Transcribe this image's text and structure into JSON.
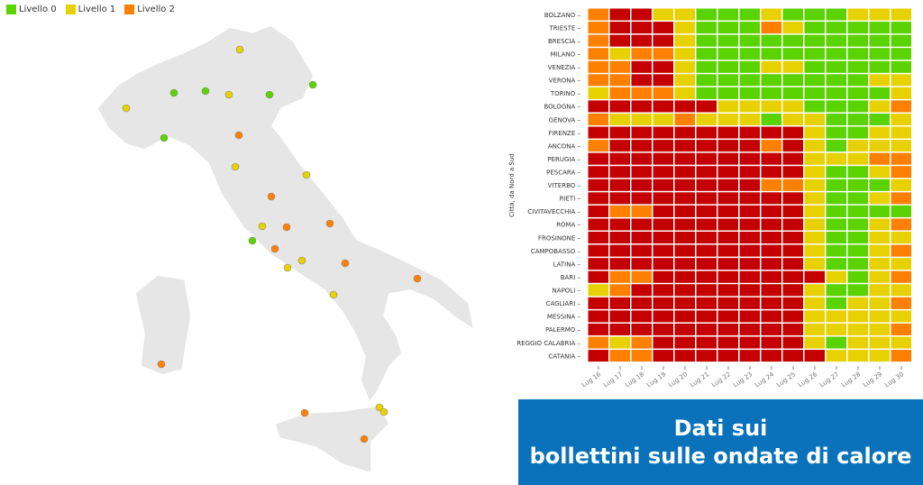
{
  "legend": [
    {
      "label": "Livello 0",
      "color": "#5ad300"
    },
    {
      "label": "Livello 1",
      "color": "#e8d100"
    },
    {
      "label": "Livello 2",
      "color": "#ff8000"
    }
  ],
  "colors": {
    "0": "#5ad300",
    "1": "#e8d100",
    "2": "#ff8000",
    "3": "#c40000"
  },
  "map": {
    "marker_levels": [
      1,
      0,
      0,
      1,
      0,
      0,
      1,
      0,
      2,
      1,
      1,
      2,
      1,
      2,
      2,
      0,
      2,
      1,
      1,
      2,
      2,
      1,
      2,
      2,
      1,
      1,
      2
    ]
  },
  "chart_data": {
    "type": "heatmap",
    "ylabel": "Città, da Nord a Sud",
    "x": [
      "Lug 16",
      "Lug 17",
      "Lug 18",
      "Lug 19",
      "Lug 20",
      "Lug 21",
      "Lug 22",
      "Lug 23",
      "Lug 24",
      "Lug 25",
      "Lug 26",
      "Lug 27",
      "Lug 28",
      "Lug 29",
      "Lug 30"
    ],
    "y": [
      "BOLZANO",
      "TRIESTE",
      "BRESCIA",
      "MILANO",
      "VENEZIA",
      "VERONA",
      "TORINO",
      "BOLOGNA",
      "GENOVA",
      "FIRENZE",
      "ANCONA",
      "PERUGIA",
      "PESCARA",
      "VITERBO",
      "RIETI",
      "CIVITAVECCHIA",
      "ROMA",
      "FROSINONE",
      "CAMPOBASSO",
      "LATINA",
      "BARI",
      "NAPOLI",
      "CAGLIARI",
      "MESSINA",
      "PALERMO",
      "REGGIO CALABRIA",
      "CATANIA"
    ],
    "values": [
      [
        2,
        3,
        3,
        1,
        1,
        0,
        0,
        0,
        1,
        0,
        0,
        0,
        1,
        1,
        1
      ],
      [
        2,
        3,
        3,
        3,
        1,
        0,
        0,
        0,
        2,
        1,
        0,
        0,
        0,
        0,
        0
      ],
      [
        2,
        3,
        3,
        3,
        1,
        0,
        0,
        0,
        0,
        0,
        0,
        0,
        0,
        0,
        0
      ],
      [
        2,
        1,
        2,
        2,
        1,
        0,
        0,
        0,
        0,
        0,
        0,
        0,
        0,
        0,
        0
      ],
      [
        2,
        2,
        3,
        3,
        1,
        0,
        0,
        0,
        1,
        1,
        0,
        0,
        0,
        0,
        0
      ],
      [
        2,
        2,
        3,
        3,
        1,
        0,
        0,
        0,
        0,
        0,
        0,
        0,
        0,
        1,
        1
      ],
      [
        1,
        2,
        2,
        2,
        1,
        0,
        0,
        0,
        0,
        0,
        0,
        0,
        0,
        0,
        1
      ],
      [
        3,
        3,
        3,
        3,
        3,
        3,
        1,
        1,
        1,
        1,
        0,
        0,
        0,
        1,
        2
      ],
      [
        2,
        1,
        1,
        1,
        2,
        1,
        1,
        1,
        0,
        1,
        1,
        0,
        0,
        0,
        1
      ],
      [
        3,
        3,
        3,
        3,
        3,
        3,
        3,
        3,
        3,
        3,
        1,
        0,
        0,
        1,
        1
      ],
      [
        2,
        3,
        3,
        3,
        3,
        3,
        3,
        3,
        2,
        3,
        1,
        0,
        1,
        1,
        1
      ],
      [
        3,
        3,
        3,
        3,
        3,
        3,
        3,
        3,
        3,
        3,
        1,
        1,
        1,
        2,
        2
      ],
      [
        3,
        3,
        3,
        3,
        3,
        3,
        3,
        3,
        3,
        3,
        1,
        0,
        0,
        1,
        2
      ],
      [
        3,
        3,
        3,
        3,
        3,
        3,
        3,
        3,
        2,
        2,
        1,
        0,
        0,
        0,
        1
      ],
      [
        3,
        3,
        3,
        3,
        3,
        3,
        3,
        3,
        3,
        3,
        1,
        0,
        0,
        1,
        2
      ],
      [
        3,
        2,
        2,
        3,
        3,
        3,
        3,
        3,
        3,
        3,
        1,
        0,
        0,
        0,
        0
      ],
      [
        3,
        3,
        3,
        3,
        3,
        3,
        3,
        3,
        3,
        3,
        1,
        0,
        0,
        1,
        2
      ],
      [
        3,
        3,
        3,
        3,
        3,
        3,
        3,
        3,
        3,
        3,
        1,
        0,
        0,
        1,
        1
      ],
      [
        3,
        3,
        3,
        3,
        3,
        3,
        3,
        3,
        3,
        3,
        1,
        0,
        0,
        1,
        2
      ],
      [
        3,
        3,
        3,
        3,
        3,
        3,
        3,
        3,
        3,
        3,
        1,
        0,
        0,
        1,
        1
      ],
      [
        3,
        2,
        2,
        3,
        3,
        3,
        3,
        3,
        3,
        3,
        3,
        1,
        0,
        1,
        2
      ],
      [
        1,
        2,
        3,
        3,
        3,
        3,
        3,
        3,
        3,
        3,
        1,
        0,
        0,
        1,
        1
      ],
      [
        3,
        3,
        3,
        3,
        3,
        3,
        3,
        3,
        3,
        3,
        1,
        0,
        1,
        1,
        2
      ],
      [
        3,
        3,
        3,
        3,
        3,
        3,
        3,
        3,
        3,
        3,
        1,
        1,
        1,
        1,
        1
      ],
      [
        3,
        3,
        3,
        3,
        3,
        3,
        3,
        3,
        3,
        3,
        1,
        1,
        1,
        1,
        2
      ],
      [
        2,
        1,
        2,
        3,
        3,
        3,
        3,
        3,
        3,
        3,
        1,
        0,
        1,
        1,
        1
      ],
      [
        3,
        2,
        2,
        3,
        3,
        3,
        3,
        3,
        3,
        3,
        3,
        1,
        1,
        1,
        2
      ]
    ]
  },
  "banner": {
    "line1": "Dati sui",
    "line2": "bollettini sulle ondate di calore"
  }
}
